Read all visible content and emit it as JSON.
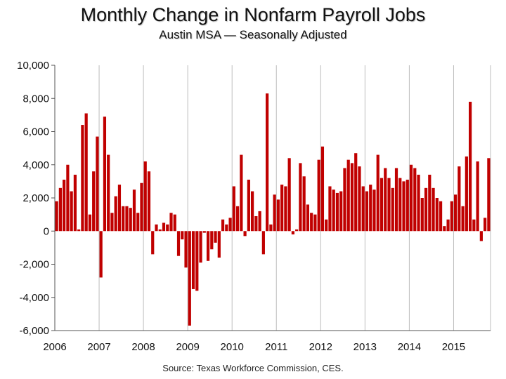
{
  "chart_data": {
    "type": "bar",
    "title": "Monthly Change in Nonfarm Payroll Jobs",
    "subtitle": "Austin MSA — Seasonally Adjusted",
    "source": "Source: Texas Workforce Commission, CES.",
    "xlabel": "",
    "ylabel": "",
    "x_start": "2006-01",
    "x_tick_labels": [
      "2006",
      "2007",
      "2008",
      "2009",
      "2010",
      "2011",
      "2012",
      "2013",
      "2014",
      "2015"
    ],
    "y_tick_labels": [
      "10,000",
      "8,000",
      "6,000",
      "4,000",
      "2,000",
      "0",
      "-2,000",
      "-4,000",
      "-6,000"
    ],
    "ylim": [
      -6000,
      10000
    ],
    "grid": "vertical-at-years",
    "bar_color": "#c00000",
    "series": [
      {
        "values": [
          1800,
          2600,
          3100,
          4000,
          2400,
          3400,
          100,
          6400,
          7100,
          1000,
          3600,
          5700,
          -2800,
          6900,
          4600,
          1100,
          2100,
          2800,
          1500,
          1500,
          1400,
          2500,
          1100,
          2900,
          4200,
          3600,
          -1400,
          400,
          100,
          500,
          400,
          1100,
          1000,
          -1500,
          -500,
          -2200,
          -5700,
          -3500,
          -3600,
          -1900,
          -100,
          -1800,
          -1100,
          -700,
          -1600,
          700,
          400,
          800,
          2700,
          1500,
          4600,
          -300,
          3100,
          2400,
          900,
          1200,
          -1400,
          8300,
          400,
          2200,
          1900,
          2800,
          2700,
          4400,
          -200,
          100,
          4100,
          3300,
          1600,
          1100,
          1000,
          4300,
          5100,
          700,
          2700,
          2500,
          2300,
          2400,
          3800,
          4300,
          4100,
          4700,
          3900,
          2700,
          2400,
          2800,
          2500,
          4600,
          3200,
          3800,
          3200,
          2600,
          3800,
          3200,
          3000,
          3100,
          4000,
          3800,
          3400,
          2000,
          2600,
          3400,
          2600,
          2000,
          1800,
          300,
          700,
          1800,
          2200,
          3900,
          1500,
          4500,
          7800,
          700,
          4200,
          -600,
          800,
          4400
        ]
      }
    ]
  }
}
